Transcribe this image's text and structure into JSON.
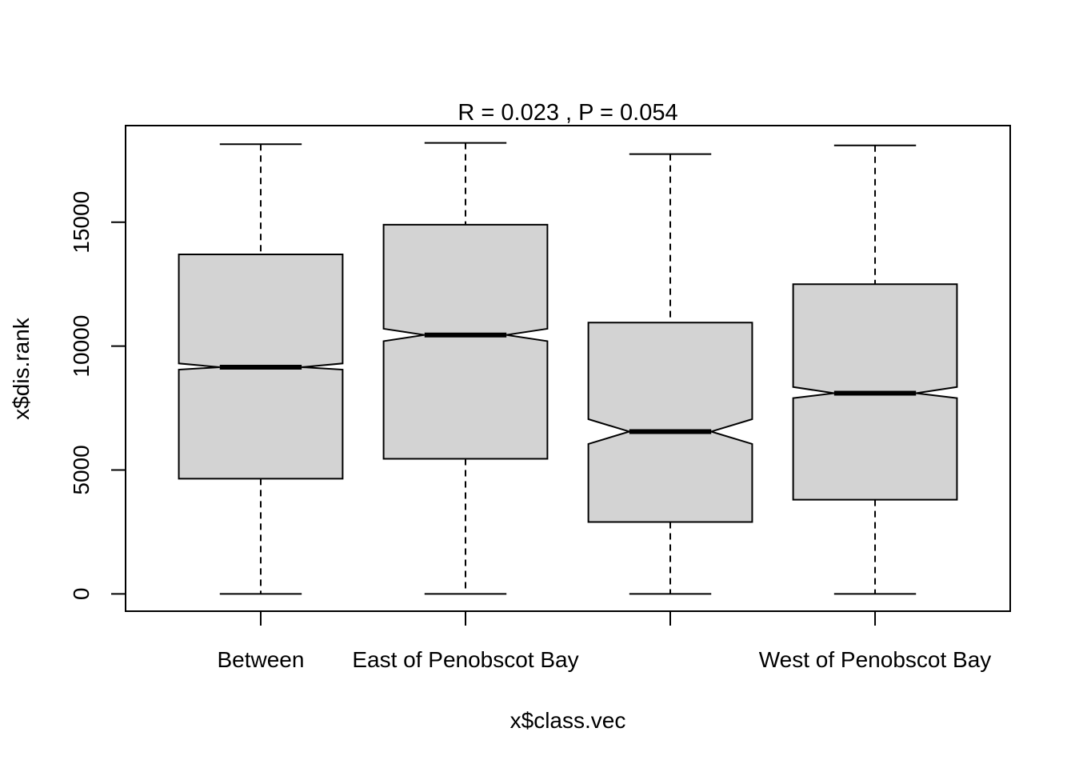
{
  "chart_data": {
    "type": "boxplot",
    "title": "R =  0.023 ,  P =  0.054",
    "xlabel": "x$class.vec",
    "ylabel": "x$dis.rank",
    "ylim": [
      -700,
      18900
    ],
    "yticks": [
      0,
      5000,
      10000,
      15000
    ],
    "notched": true,
    "box_fill": "#d3d3d3",
    "categories": [
      "Between",
      "East of Penobscot Bay",
      "",
      "West of Penobscot Bay"
    ],
    "boxes": [
      {
        "min": 0,
        "q1": 4650,
        "median": 9150,
        "q3": 13700,
        "max": 18150,
        "notch_low": 9050,
        "notch_high": 9300
      },
      {
        "min": 0,
        "q1": 5450,
        "median": 10450,
        "q3": 14900,
        "max": 18200,
        "notch_low": 10200,
        "notch_high": 10700
      },
      {
        "min": 0,
        "q1": 2900,
        "median": 6550,
        "q3": 10950,
        "max": 17750,
        "notch_low": 6050,
        "notch_high": 7050
      },
      {
        "min": 0,
        "q1": 3800,
        "median": 8100,
        "q3": 12500,
        "max": 18100,
        "notch_low": 7900,
        "notch_high": 8350
      }
    ]
  }
}
